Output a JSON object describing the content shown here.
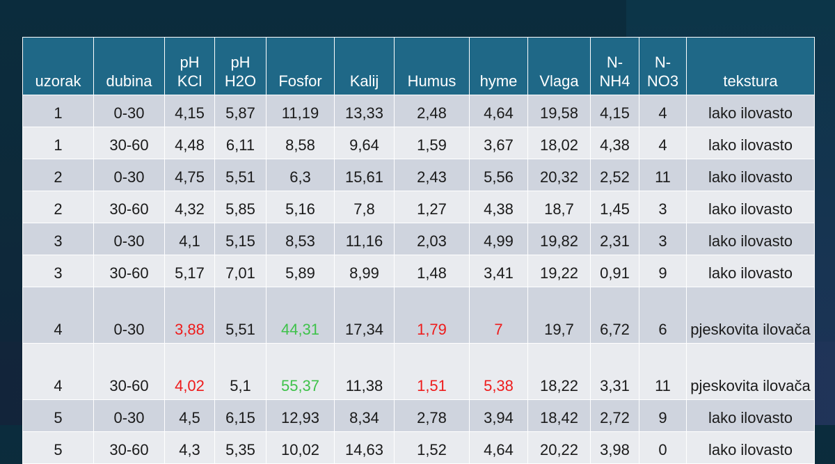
{
  "columns": [
    "uzorak",
    "dubina",
    "pH KCl",
    "pH H2O",
    "Fosfor",
    "Kalij",
    "Humus",
    "hyme",
    "Vlaga",
    "N-NH4",
    "N-NO3",
    "tekstura"
  ],
  "header": [
    {
      "line1": "",
      "line2": "uzorak"
    },
    {
      "line1": "",
      "line2": "dubina"
    },
    {
      "line1": "pH",
      "line2": "KCl"
    },
    {
      "line1": "pH",
      "line2": "H2O"
    },
    {
      "line1": "",
      "line2": "Fosfor"
    },
    {
      "line1": "",
      "line2": "Kalij"
    },
    {
      "line1": "",
      "line2": "Humus"
    },
    {
      "line1": "",
      "line2": "hyme"
    },
    {
      "line1": "",
      "line2": "Vlaga"
    },
    {
      "line1": "N-",
      "line2": "NH4"
    },
    {
      "line1": "N-",
      "line2": "NO3"
    },
    {
      "line1": "",
      "line2": "tekstura"
    }
  ],
  "rows": [
    {
      "cells": [
        "1",
        "0-30",
        "4,15",
        "5,87",
        "11,19",
        "13,33",
        "2,48",
        "4,64",
        "19,58",
        "4,15",
        "4",
        "lako ilovasto"
      ]
    },
    {
      "cells": [
        "1",
        "30-60",
        "4,48",
        "6,11",
        "8,58",
        "9,64",
        "1,59",
        "3,67",
        "18,02",
        "4,38",
        "4",
        "lako ilovasto"
      ]
    },
    {
      "cells": [
        "2",
        "0-30",
        "4,75",
        "5,51",
        "6,3",
        "15,61",
        "2,43",
        "5,56",
        "20,32",
        "2,52",
        "11",
        "lako ilovasto"
      ]
    },
    {
      "cells": [
        "2",
        "30-60",
        "4,32",
        "5,85",
        "5,16",
        "7,8",
        "1,27",
        "4,38",
        "18,7",
        "1,45",
        "3",
        "lako ilovasto"
      ]
    },
    {
      "cells": [
        "3",
        "0-30",
        "4,1",
        "5,15",
        "8,53",
        "11,16",
        "2,03",
        "4,99",
        "19,82",
        "2,31",
        "3",
        "lako ilovasto"
      ]
    },
    {
      "cells": [
        "3",
        "30-60",
        "5,17",
        "7,01",
        "5,89",
        "8,99",
        "1,48",
        "3,41",
        "19,22",
        "0,91",
        "9",
        "lako ilovasto"
      ]
    },
    {
      "cells": [
        "4",
        "0-30",
        "3,88",
        "5,51",
        "44,31",
        "17,34",
        "1,79",
        "7",
        "19,7",
        "6,72",
        "6",
        "pjeskovita ilovača"
      ]
    },
    {
      "cells": [
        "4",
        "30-60",
        "4,02",
        "5,1",
        "55,37",
        "11,38",
        "1,51",
        "5,38",
        "18,22",
        "3,31",
        "11",
        "pjeskovita ilovača"
      ]
    },
    {
      "cells": [
        "5",
        "0-30",
        "4,5",
        "6,15",
        "12,93",
        "8,34",
        "2,78",
        "3,94",
        "18,42",
        "2,72",
        "9",
        "lako ilovasto"
      ]
    },
    {
      "cells": [
        "5",
        "30-60",
        "4,3",
        "5,35",
        "10,02",
        "14,63",
        "1,52",
        "4,64",
        "20,22",
        "3,98",
        "0",
        "lako ilovasto"
      ]
    }
  ],
  "colors": {
    "header_bg": "#1f6887",
    "row_odd_bg": "#cfd4de",
    "row_even_bg": "#e9ebef",
    "highlight_red": "#ee1b1b",
    "highlight_green": "#3ec24a"
  },
  "highlights": {
    "red": [
      [
        6,
        2
      ],
      [
        6,
        6
      ],
      [
        6,
        7
      ],
      [
        7,
        2
      ],
      [
        7,
        6
      ],
      [
        7,
        7
      ]
    ],
    "green": [
      [
        6,
        4
      ],
      [
        7,
        4
      ]
    ]
  }
}
